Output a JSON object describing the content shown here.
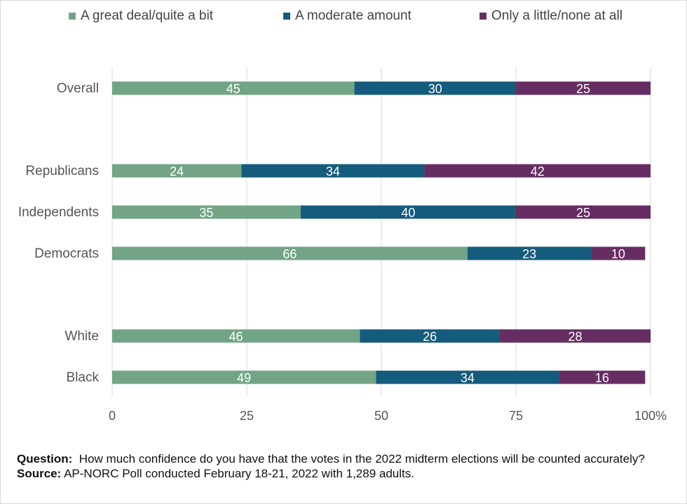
{
  "colors": {
    "great": "#72a486",
    "moderate": "#155b7d",
    "little": "#662d63",
    "grid": "#d9d9d9",
    "tick": "#555555"
  },
  "footer": {
    "question_label": "Question:",
    "question_text": "How much confidence do you have that the votes in the 2022 midterm elections will be counted accurately?",
    "source_label": "Source:",
    "source_text": "AP-NORC Poll conducted February 18-21, 2022 with 1,289 adults."
  },
  "chart_data": {
    "type": "bar",
    "orientation": "horizontal",
    "stacked": true,
    "title": "",
    "xlabel": "",
    "ylabel": "",
    "xlim": [
      0,
      100
    ],
    "x_ticks": [
      "0",
      "25",
      "50",
      "75",
      "100%"
    ],
    "grid": "vertical",
    "legend_position": "top",
    "categories": [
      "Overall",
      "Republicans",
      "Independents",
      "Democrats",
      "White",
      "Black"
    ],
    "series": [
      {
        "name": "A great deal/quite a bit",
        "values": [
          45,
          24,
          35,
          66,
          46,
          49
        ]
      },
      {
        "name": "A moderate amount",
        "values": [
          30,
          34,
          40,
          23,
          26,
          34
        ]
      },
      {
        "name": "Only a little/none at all",
        "values": [
          25,
          42,
          25,
          10,
          28,
          16
        ]
      }
    ]
  }
}
